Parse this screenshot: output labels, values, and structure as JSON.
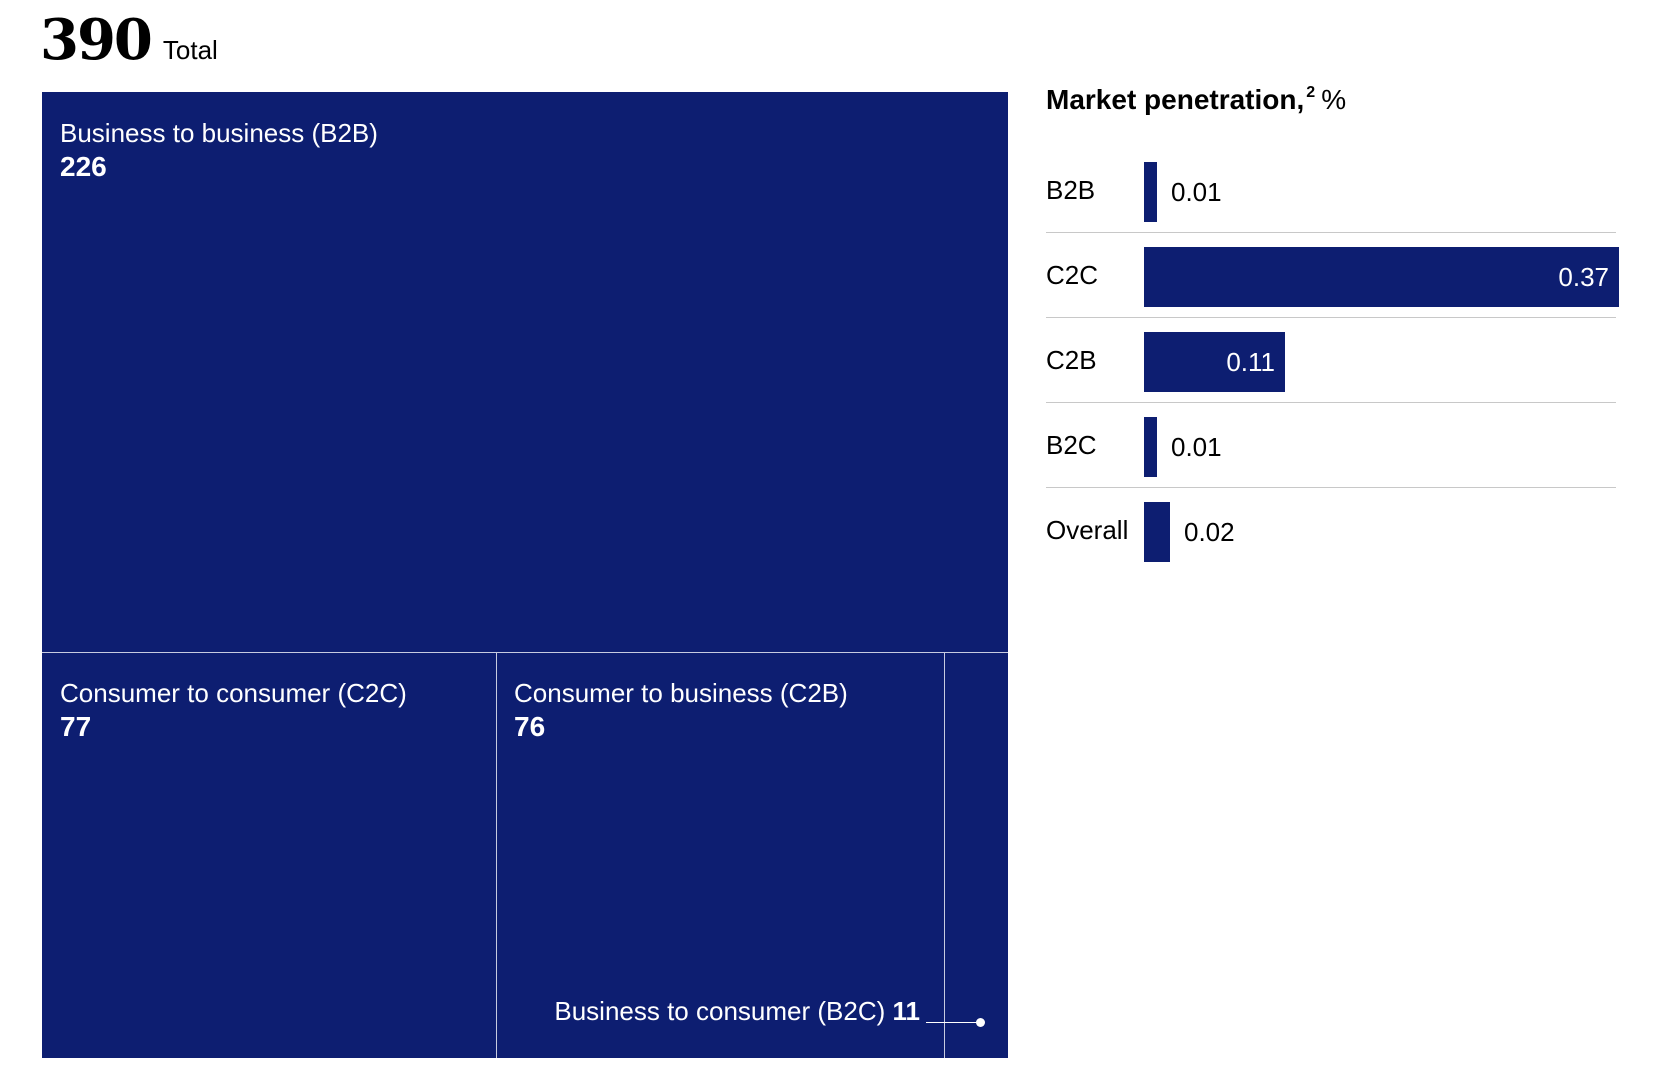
{
  "header": {
    "total_value": "390",
    "total_label": "Total"
  },
  "chart_data": [
    {
      "type": "treemap",
      "total": 390,
      "categories": [
        "Business to business (B2B)",
        "Consumer to consumer (C2C)",
        "Consumer to business (C2B)",
        "Business to consumer (B2C)"
      ],
      "values": [
        226,
        77,
        76,
        11
      ],
      "color": "#0d1e71",
      "callout": {
        "label": "Business to consumer (B2C)",
        "value": "11"
      }
    },
    {
      "type": "bar",
      "orientation": "horizontal",
      "title": "Market penetration,",
      "title_footnote": "2",
      "title_unit": "%",
      "categories": [
        "B2B",
        "C2C",
        "C2B",
        "B2C",
        "Overall"
      ],
      "values": [
        0.01,
        0.37,
        0.11,
        0.01,
        0.02
      ],
      "value_labels": [
        "0.01",
        "0.37",
        "0.11",
        "0.01",
        "0.02"
      ],
      "xlim": [
        0,
        0.37
      ],
      "color": "#0d1e71"
    }
  ]
}
